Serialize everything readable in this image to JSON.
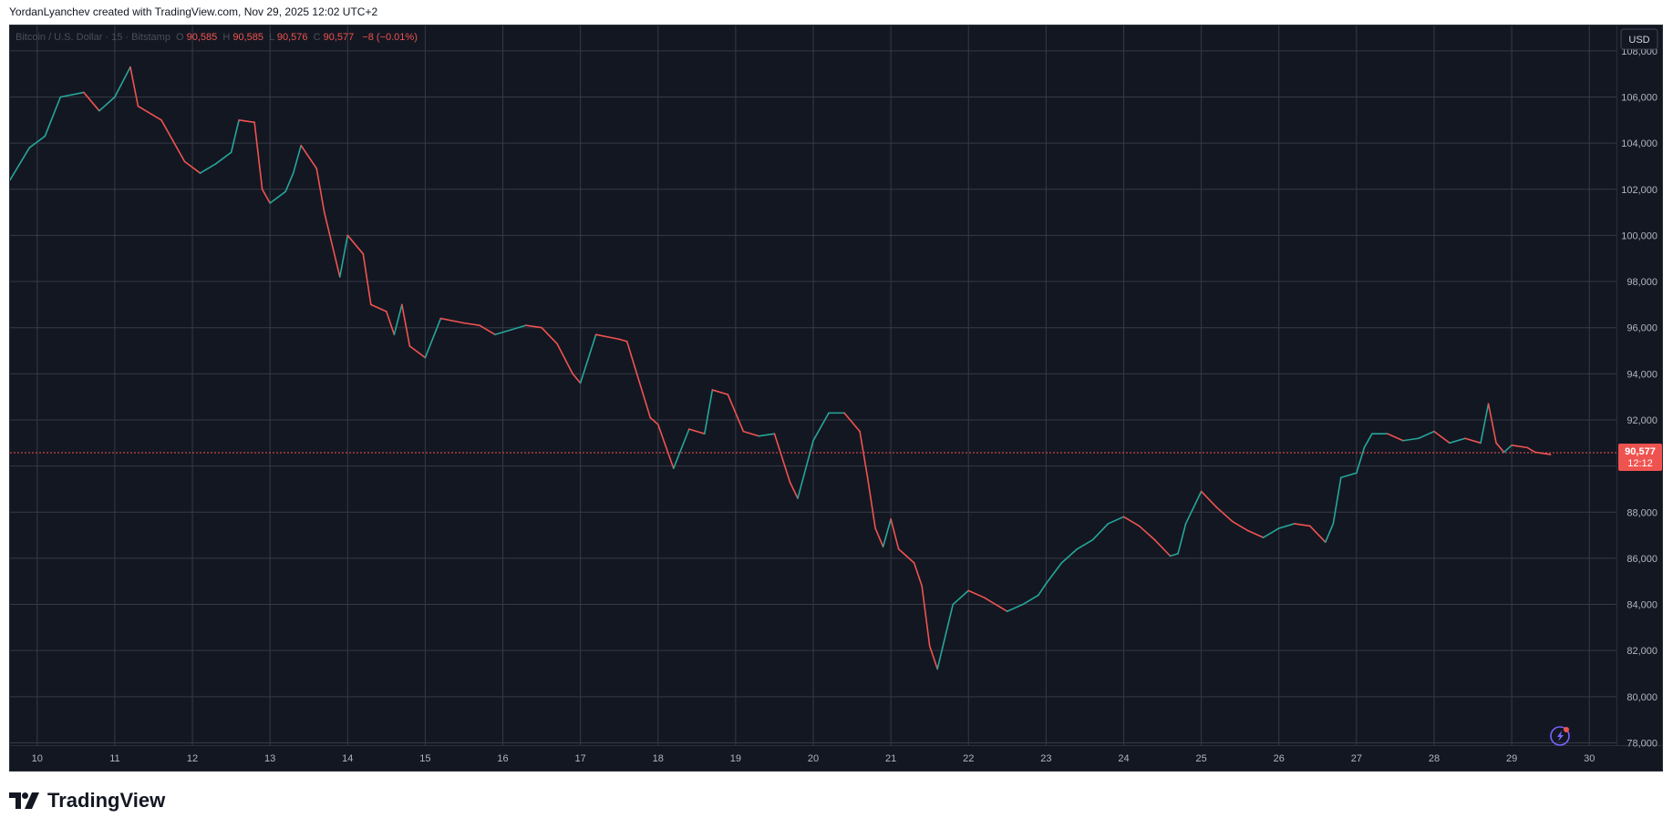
{
  "header": {
    "caption": "YordanLyanchev created with TradingView.com, Nov 29, 2025 12:02 UTC+2"
  },
  "legend": {
    "symbol": "Bitcoin / U.S. Dollar · 15 · Bitstamp",
    "o_label": "O",
    "o_value": "90,585",
    "h_label": "H",
    "h_value": "90,585",
    "l_label": "L",
    "l_value": "90,576",
    "c_label": "C",
    "c_value": "90,577",
    "change": "−8 (−0.01%)"
  },
  "currency_button": "USD",
  "last_price": {
    "value": "90,577",
    "countdown": "12:12"
  },
  "brand": {
    "name": "TradingView",
    "logo_icon": "tradingview-logo-icon"
  },
  "colors": {
    "background": "#131722",
    "grid": "#363a45",
    "up": "#26a69a",
    "down": "#ef5350",
    "axis_text": "#b2b5be",
    "frame_bg": "#ffffff"
  },
  "chart_data": {
    "type": "line",
    "title": "Bitcoin / U.S. Dollar · 15 · Bitstamp",
    "xlabel": "",
    "ylabel": "",
    "x_ticks": [
      "10",
      "11",
      "12",
      "13",
      "14",
      "15",
      "16",
      "17",
      "18",
      "19",
      "20",
      "21",
      "22",
      "23",
      "24",
      "25",
      "26",
      "27",
      "28",
      "29",
      "30"
    ],
    "y_ticks": [
      "108,000",
      "106,000",
      "104,000",
      "102,000",
      "100,000",
      "98,000",
      "96,000",
      "94,000",
      "92,000",
      "90,000",
      "88,000",
      "86,000",
      "84,000",
      "82,000",
      "80,000",
      "78,000"
    ],
    "ylim": [
      77900,
      109100
    ],
    "xlim": [
      9.65,
      30.35
    ],
    "grid": true,
    "series": [
      {
        "values": [
          [
            9.65,
            102400
          ],
          [
            9.9,
            103800
          ],
          [
            10.1,
            104300
          ],
          [
            10.3,
            106000
          ],
          [
            10.6,
            106200
          ],
          [
            10.8,
            105400
          ],
          [
            11.0,
            106000
          ],
          [
            11.2,
            107300
          ],
          [
            11.3,
            105600
          ],
          [
            11.6,
            105000
          ],
          [
            11.9,
            103200
          ],
          [
            12.1,
            102700
          ],
          [
            12.3,
            103100
          ],
          [
            12.5,
            103600
          ],
          [
            12.6,
            105000
          ],
          [
            12.8,
            104900
          ],
          [
            12.9,
            102000
          ],
          [
            13.0,
            101400
          ],
          [
            13.2,
            101900
          ],
          [
            13.3,
            102700
          ],
          [
            13.4,
            103900
          ],
          [
            13.6,
            102900
          ],
          [
            13.7,
            101000
          ],
          [
            13.9,
            98200
          ],
          [
            14.0,
            100000
          ],
          [
            14.2,
            99200
          ],
          [
            14.3,
            97000
          ],
          [
            14.5,
            96700
          ],
          [
            14.6,
            95700
          ],
          [
            14.7,
            97000
          ],
          [
            14.8,
            95200
          ],
          [
            15.0,
            94700
          ],
          [
            15.2,
            96400
          ],
          [
            15.5,
            96200
          ],
          [
            15.7,
            96100
          ],
          [
            15.9,
            95700
          ],
          [
            16.1,
            95900
          ],
          [
            16.3,
            96100
          ],
          [
            16.5,
            96000
          ],
          [
            16.7,
            95300
          ],
          [
            16.9,
            94000
          ],
          [
            17.0,
            93600
          ],
          [
            17.2,
            95700
          ],
          [
            17.5,
            95500
          ],
          [
            17.6,
            95400
          ],
          [
            17.7,
            94300
          ],
          [
            17.9,
            92100
          ],
          [
            18.0,
            91800
          ],
          [
            18.2,
            89900
          ],
          [
            18.4,
            91600
          ],
          [
            18.6,
            91400
          ],
          [
            18.7,
            93300
          ],
          [
            18.9,
            93100
          ],
          [
            19.1,
            91500
          ],
          [
            19.3,
            91300
          ],
          [
            19.5,
            91400
          ],
          [
            19.7,
            89300
          ],
          [
            19.8,
            88600
          ],
          [
            20.0,
            91100
          ],
          [
            20.2,
            92300
          ],
          [
            20.4,
            92300
          ],
          [
            20.6,
            91500
          ],
          [
            20.7,
            89500
          ],
          [
            20.8,
            87300
          ],
          [
            20.9,
            86500
          ],
          [
            21.0,
            87700
          ],
          [
            21.1,
            86400
          ],
          [
            21.3,
            85800
          ],
          [
            21.4,
            84800
          ],
          [
            21.5,
            82200
          ],
          [
            21.6,
            81200
          ],
          [
            21.8,
            84000
          ],
          [
            22.0,
            84600
          ],
          [
            22.2,
            84300
          ],
          [
            22.4,
            83900
          ],
          [
            22.5,
            83700
          ],
          [
            22.7,
            84000
          ],
          [
            22.9,
            84400
          ],
          [
            23.0,
            84900
          ],
          [
            23.2,
            85800
          ],
          [
            23.4,
            86400
          ],
          [
            23.6,
            86800
          ],
          [
            23.8,
            87500
          ],
          [
            24.0,
            87800
          ],
          [
            24.2,
            87400
          ],
          [
            24.4,
            86800
          ],
          [
            24.6,
            86100
          ],
          [
            24.7,
            86200
          ],
          [
            24.8,
            87500
          ],
          [
            25.0,
            88900
          ],
          [
            25.2,
            88200
          ],
          [
            25.4,
            87600
          ],
          [
            25.6,
            87200
          ],
          [
            25.8,
            86900
          ],
          [
            26.0,
            87300
          ],
          [
            26.2,
            87500
          ],
          [
            26.4,
            87400
          ],
          [
            26.6,
            86700
          ],
          [
            26.7,
            87500
          ],
          [
            26.8,
            89500
          ],
          [
            27.0,
            89700
          ],
          [
            27.1,
            90800
          ],
          [
            27.2,
            91400
          ],
          [
            27.4,
            91400
          ],
          [
            27.6,
            91100
          ],
          [
            27.8,
            91200
          ],
          [
            28.0,
            91500
          ],
          [
            28.2,
            91000
          ],
          [
            28.4,
            91200
          ],
          [
            28.6,
            91000
          ],
          [
            28.7,
            92700
          ],
          [
            28.8,
            91000
          ],
          [
            28.9,
            90600
          ],
          [
            29.0,
            90900
          ],
          [
            29.2,
            90800
          ],
          [
            29.3,
            90600
          ],
          [
            29.5,
            90500
          ]
        ]
      }
    ]
  }
}
